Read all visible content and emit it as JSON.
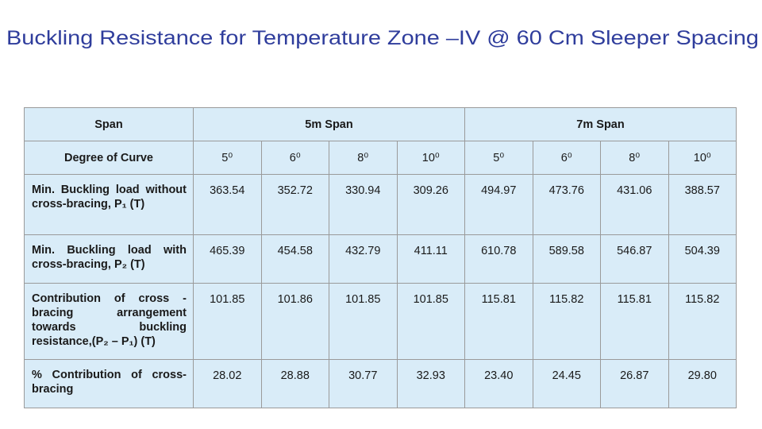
{
  "title": "Buckling Resistance for Temperature Zone –IV @ 60 Cm Sleeper Spacing",
  "table": {
    "span_label": "Span",
    "groups": [
      "5m Span",
      "7m Span"
    ],
    "degree_label": "Degree of Curve",
    "degrees": [
      "5⁰",
      "6⁰",
      "8⁰",
      "10⁰",
      "5⁰",
      "6⁰",
      "8⁰",
      "10⁰"
    ],
    "rows": [
      {
        "label": "Min. Buckling load without cross-bracing, P₁ (T)",
        "values": [
          "363.54",
          "352.72",
          "330.94",
          "309.26",
          "494.97",
          "473.76",
          "431.06",
          "388.57"
        ]
      },
      {
        "label": "Min. Buckling load with cross-bracing, P₂ (T)",
        "values": [
          "465.39",
          "454.58",
          "432.79",
          "411.11",
          "610.78",
          "589.58",
          "546.87",
          "504.39"
        ]
      },
      {
        "label": "Contribution of cross - bracing arrangement towards buckling resistance,(P₂ – P₁) (T)",
        "values": [
          "101.85",
          "101.86",
          "101.85",
          "101.85",
          "115.81",
          "115.82",
          "115.81",
          "115.82"
        ]
      },
      {
        "label": "% Contribution of cross-bracing",
        "values": [
          "28.02",
          "28.88",
          "30.77",
          "32.93",
          "23.40",
          "24.45",
          "26.87",
          "29.80"
        ]
      }
    ]
  }
}
